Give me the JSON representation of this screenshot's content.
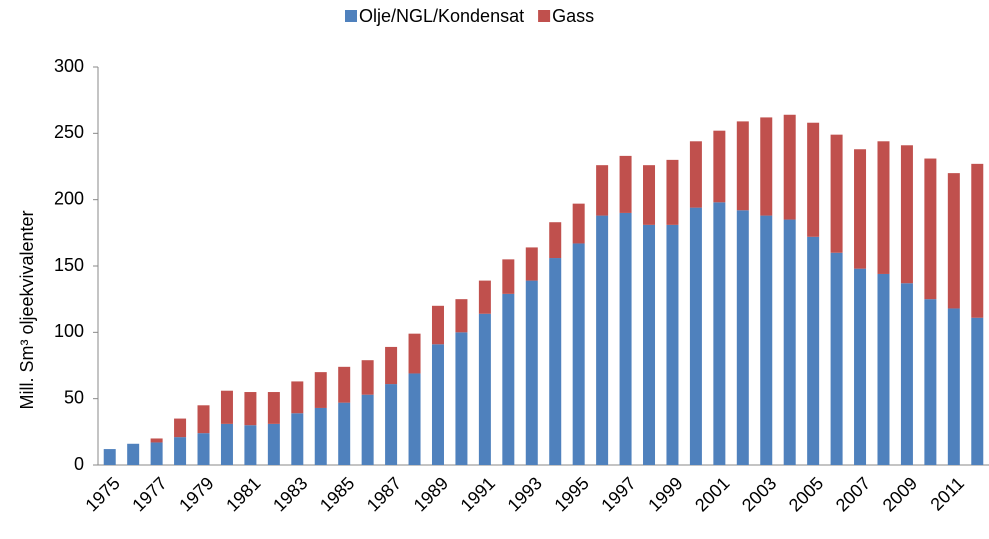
{
  "chart_data": {
    "type": "bar",
    "stacked": true,
    "y_label": "Mill. Sm³ oljeekvivalenter",
    "categories": [
      "1975",
      null,
      "1977",
      null,
      "1979",
      null,
      "1981",
      null,
      "1983",
      null,
      "1985",
      null,
      "1987",
      null,
      "1989",
      null,
      "1991",
      null,
      "1993",
      null,
      "1995",
      null,
      "1997",
      null,
      "1999",
      null,
      "2001",
      null,
      "2003",
      null,
      "2005",
      null,
      "2007",
      null,
      "2009",
      null,
      "2011",
      null
    ],
    "series": [
      {
        "name": "Olje/NGL/Kondensat",
        "color": "#4f81bd",
        "values": [
          12,
          16,
          17,
          21,
          24,
          31,
          30,
          31,
          39,
          43,
          47,
          53,
          61,
          69,
          91,
          100,
          114,
          129,
          139,
          156,
          167,
          188,
          190,
          181,
          181,
          194,
          198,
          192,
          188,
          185,
          172,
          160,
          148,
          144,
          137,
          125,
          118,
          111
        ]
      },
      {
        "name": "Gass",
        "color": "#c0504d",
        "values": [
          0,
          0,
          3,
          14,
          21,
          25,
          25,
          24,
          24,
          27,
          27,
          26,
          28,
          30,
          29,
          25,
          25,
          26,
          25,
          27,
          30,
          38,
          43,
          45,
          49,
          50,
          54,
          67,
          74,
          79,
          86,
          89,
          90,
          100,
          104,
          106,
          102,
          116
        ]
      }
    ],
    "ylim": [
      0,
      300
    ],
    "yticks": [
      0,
      50,
      100,
      150,
      200,
      250,
      300
    ],
    "grid": false,
    "legend": "top"
  }
}
